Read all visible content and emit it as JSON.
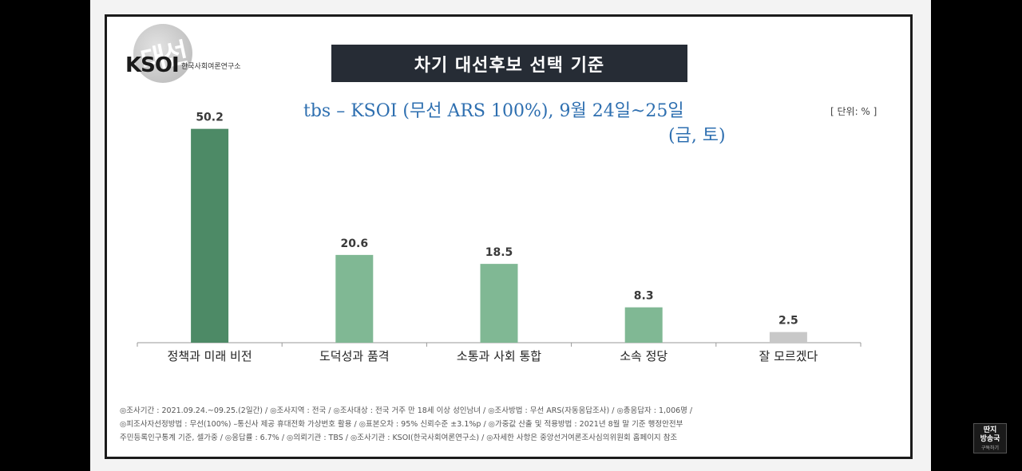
{
  "header": {
    "org_logo_text": "KSOI",
    "org_logo_sub": "한국사회여론연구소",
    "title": "차기 대선후보 선택 기준",
    "subtitle_line1": "tbs – KSOI (무선 ARS 100%), 9월 24일~25일",
    "subtitle_line2": "(금, 토)",
    "unit": "[ 단위: % ]"
  },
  "chart_data": {
    "type": "bar",
    "categories": [
      "정책과 미래 비전",
      "도덕성과 품격",
      "소통과 사회 통합",
      "소속 정당",
      "잘 모르겠다"
    ],
    "values": [
      50.2,
      20.6,
      18.5,
      8.3,
      2.5
    ],
    "value_labels": [
      "50.2",
      "20.6",
      "18.5",
      "8.3",
      "2.5"
    ],
    "colors": [
      "#4d8a66",
      "#80b894",
      "#80b894",
      "#80b894",
      "#c8c8c8"
    ],
    "ylim": [
      0,
      55
    ],
    "title": "차기 대선후보 선택 기준",
    "xlabel": "",
    "ylabel": "",
    "grid": false
  },
  "footnote": {
    "line1": "◎조사기간 : 2021.09.24.~09.25.(2일간) / ◎조사지역 : 전국 / ◎조사대상 : 전국 거주 만 18세 이상 성인남녀 / ◎조사방법 : 무선 ARS(자동응답조사) / ◎총응답자 : 1,006명 /",
    "line2": "◎피조사자선정방법 : 무선(100%) –통신사 제공 휴대전화 가상번호 활용 / ◎표본오차 : 95% 신뢰수준 ±3.1%p / ◎가중값 산출 및 적용방법 : 2021년 8월 말 기준 행정안전부",
    "line3": "주민등록인구통계 기준, 셀가중 / ◎응답률 : 6.7% / ◎의뢰기관 : TBS / ◎조사기관 : KSOI(한국사회여론연구소) / ◎자세한 사항은 중앙선거여론조사심의위원회 홈페이지 참조"
  },
  "badge": {
    "line1": "딴지",
    "line2": "방송국",
    "line3": "구독하기"
  }
}
